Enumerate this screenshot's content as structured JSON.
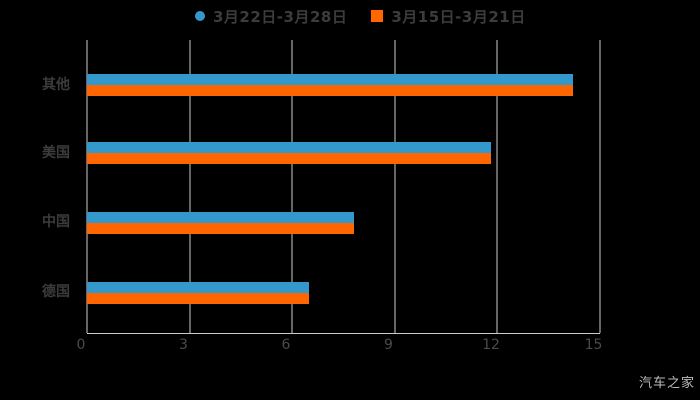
{
  "page": {
    "background": "#000000",
    "watermark": "汽车之家"
  },
  "legend": {
    "items": [
      {
        "label": "3月22日-3月28日",
        "color": "#3399cc",
        "marker": "circle"
      },
      {
        "label": "3月15日-3月21日",
        "color": "#ff6600",
        "marker": "square"
      }
    ]
  },
  "chart_data": {
    "type": "bar",
    "orientation": "horizontal",
    "title": "",
    "xlabel": "",
    "ylabel": "",
    "categories": [
      "其他",
      "美国",
      "中国",
      "德国"
    ],
    "series": [
      {
        "name": "3月22日-3月28日",
        "color": "#3399cc",
        "values": [
          14.2,
          11.8,
          7.8,
          6.5
        ]
      },
      {
        "name": "3月15日-3月21日",
        "color": "#ff6600",
        "values": [
          14.2,
          11.8,
          7.8,
          6.5
        ]
      }
    ],
    "x_ticks": [
      "0",
      "3",
      "6",
      "9",
      "12",
      "15"
    ],
    "xlim": [
      0,
      15
    ],
    "grid": true,
    "grid_color": "#cccccc",
    "axis_color": "#cccccc",
    "legend_position": "top"
  }
}
